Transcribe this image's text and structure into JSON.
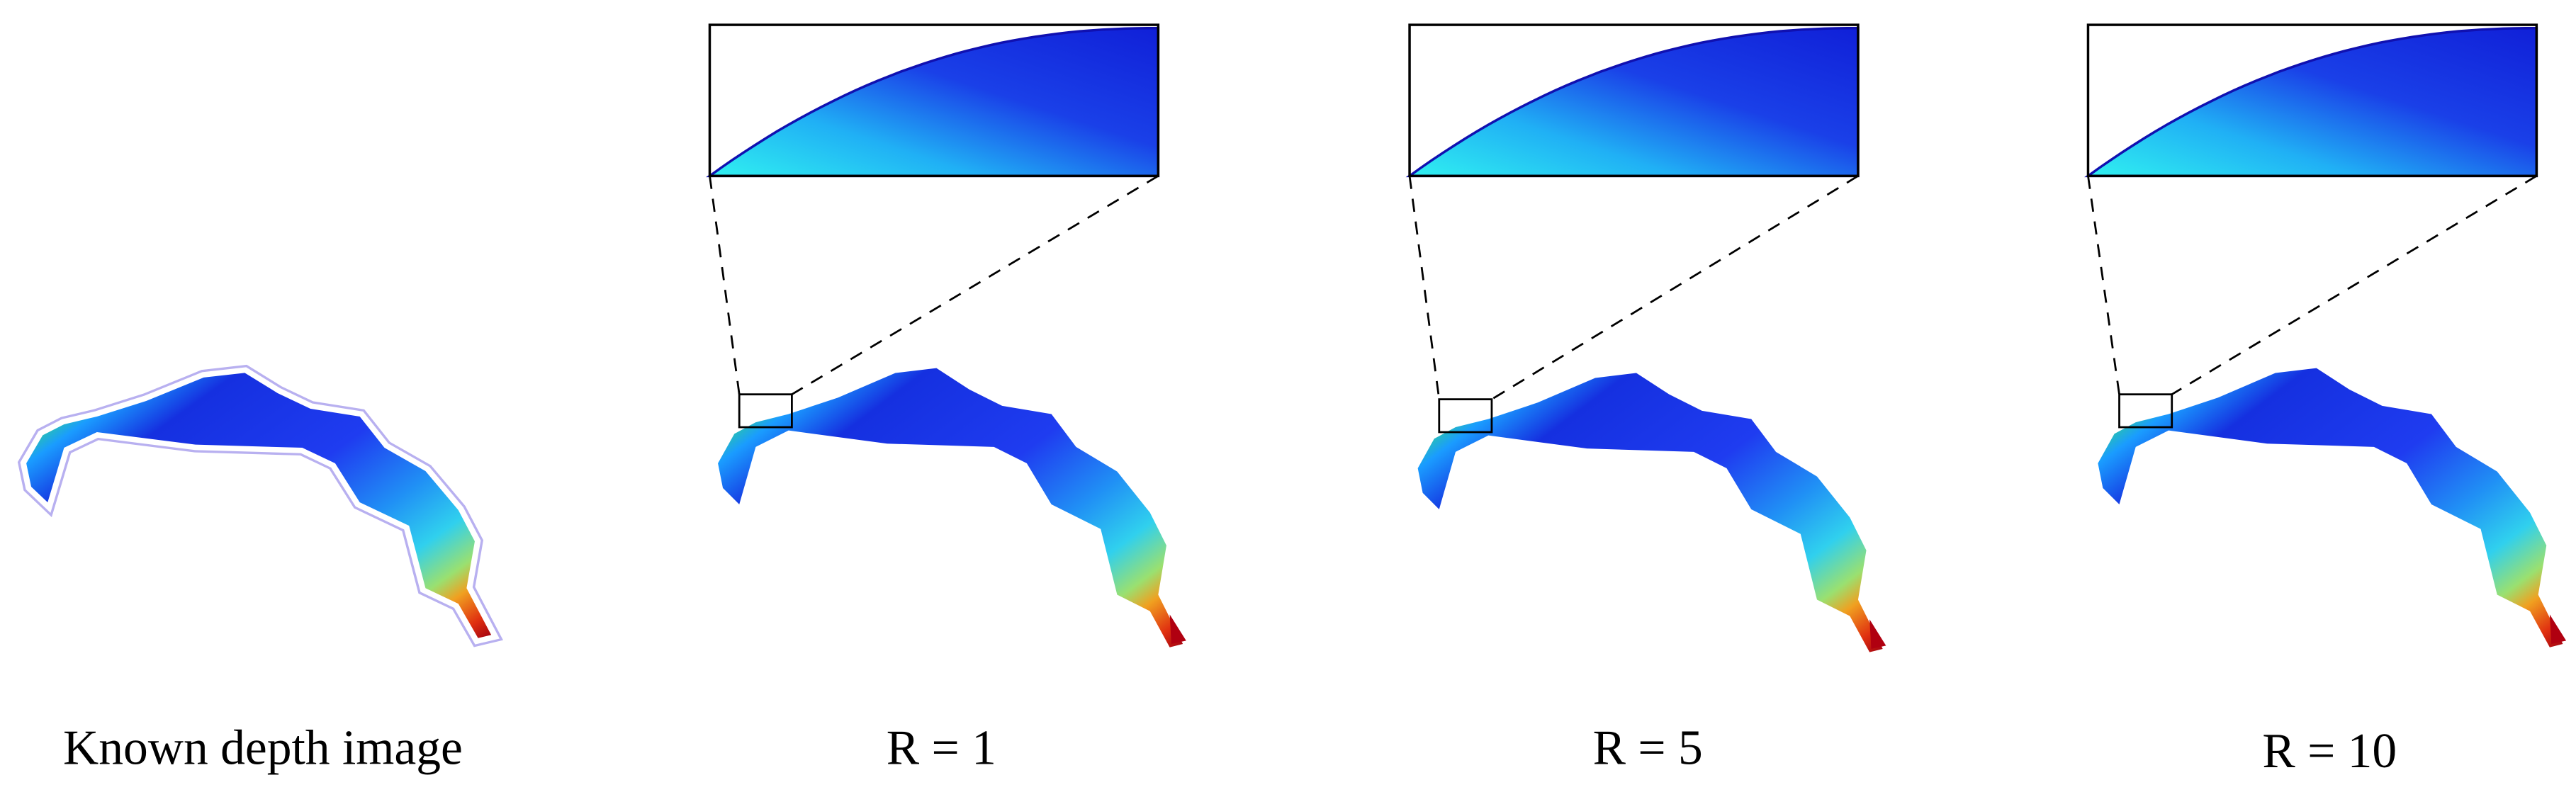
{
  "panels": [
    {
      "caption": "Known depth image"
    },
    {
      "caption": "R = 1"
    },
    {
      "caption": "R = 5"
    },
    {
      "caption": "R = 10"
    }
  ]
}
